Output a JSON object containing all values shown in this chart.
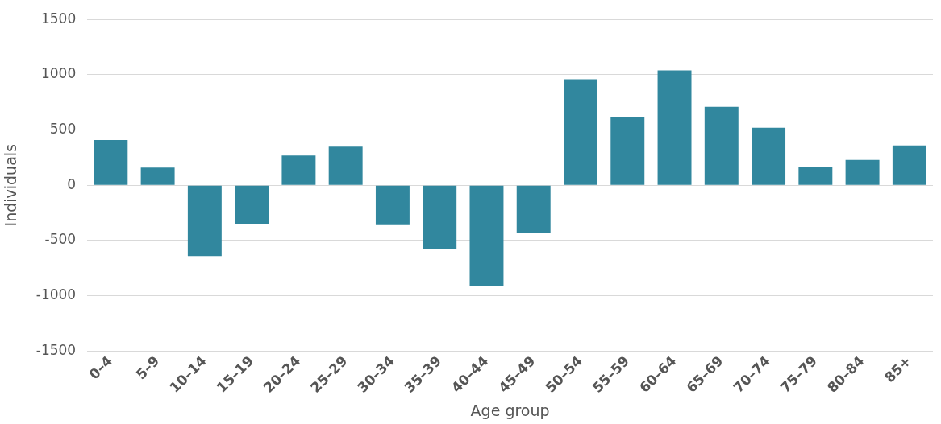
{
  "chart_data": {
    "type": "bar",
    "xlabel": "Age group",
    "ylabel": "Individuals",
    "categories": [
      "0–4",
      "5–9",
      "10–14",
      "15–19",
      "20–24",
      "25–29",
      "30–34",
      "35–39",
      "40–44",
      "45–49",
      "50–54",
      "55–59",
      "60–64",
      "65–69",
      "70–74",
      "75–79",
      "80–84",
      "85+"
    ],
    "values": [
      410,
      160,
      -640,
      -350,
      270,
      350,
      -360,
      -580,
      -910,
      -430,
      960,
      620,
      1040,
      710,
      520,
      170,
      230,
      360
    ],
    "color": "#31879e",
    "ylim": [
      -1500,
      1500
    ],
    "yticks": [
      -1500,
      -1000,
      -500,
      0,
      500,
      1000,
      1500
    ],
    "grid": "y",
    "legend": false
  }
}
